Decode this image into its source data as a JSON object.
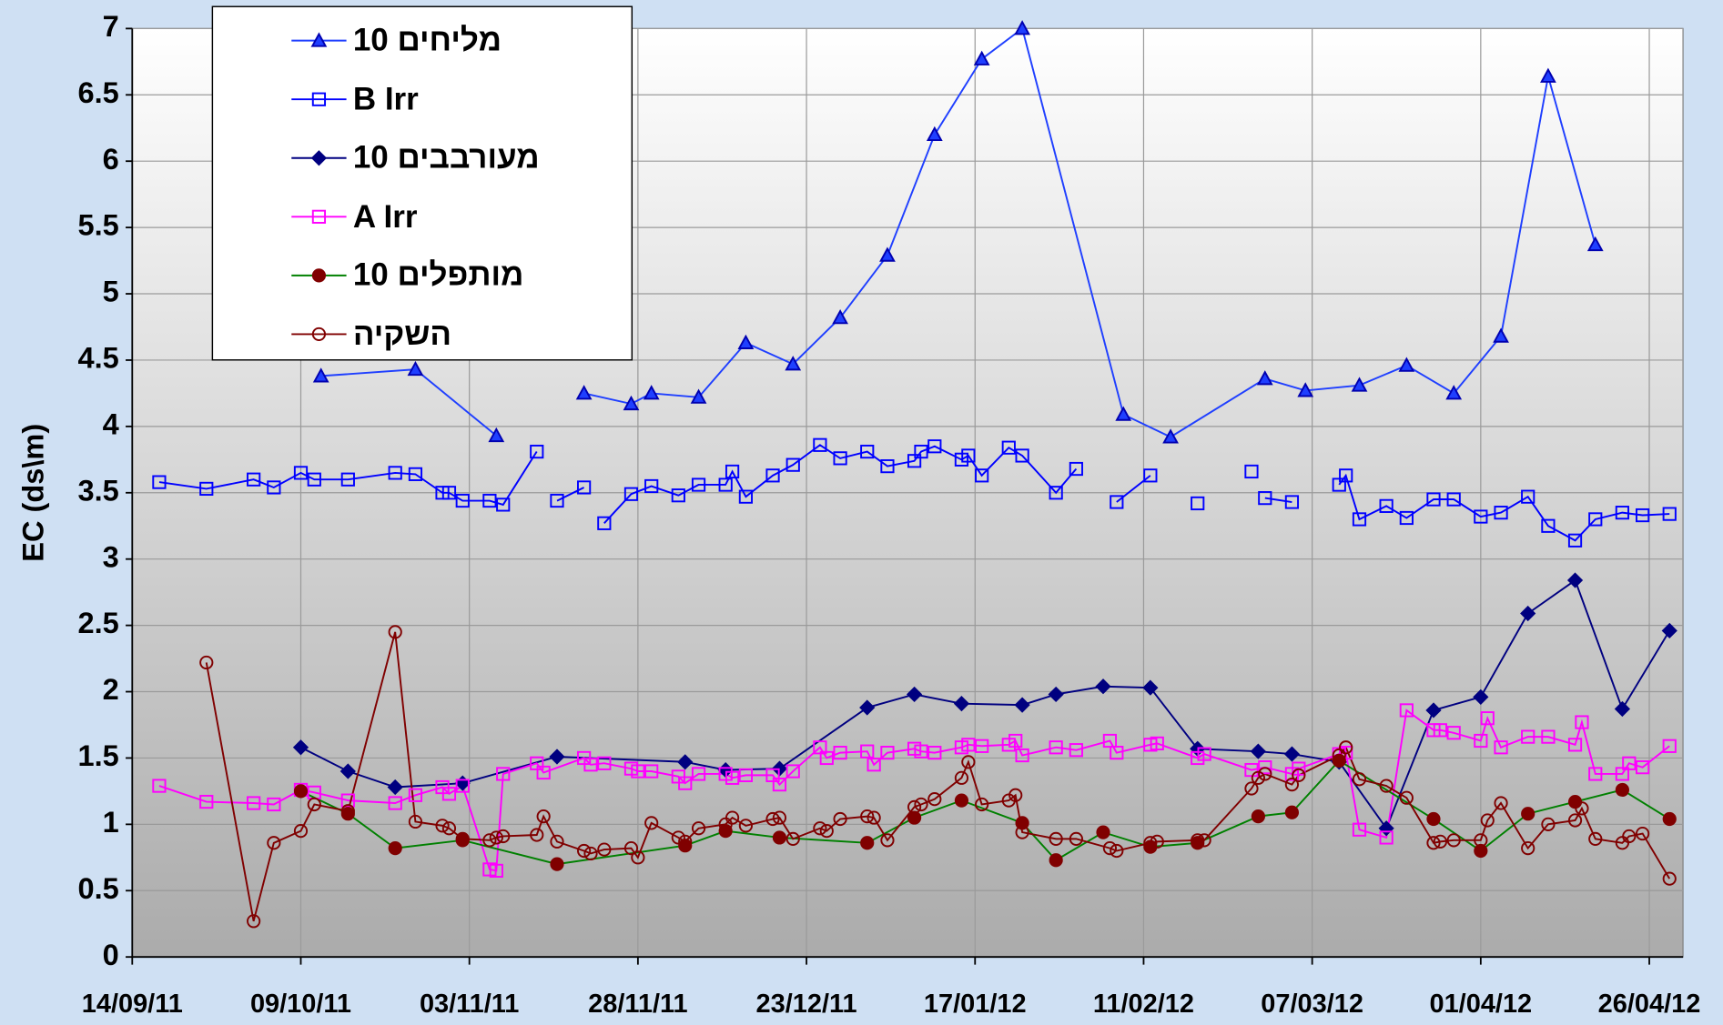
{
  "chart_data": {
    "type": "line",
    "ylabel": "EC  (ds\\m)",
    "xlim": [
      "14/09/11",
      "01/05/12"
    ],
    "xticks": [
      "14/09/11",
      "09/10/11",
      "03/11/11",
      "28/11/11",
      "23/12/11",
      "17/01/12",
      "11/02/12",
      "07/03/12",
      "01/04/12",
      "26/04/12"
    ],
    "ylim": [
      0,
      7
    ],
    "yticks": [
      0,
      0.5,
      1,
      1.5,
      2,
      2.5,
      3,
      3.5,
      4,
      4.5,
      5,
      5.5,
      6,
      6.5,
      7
    ],
    "grid": true,
    "legend": "upper left",
    "series": [
      {
        "name": "מליחים 10",
        "color": "#1f3fff",
        "marker": "triangle",
        "filled": true,
        "x": [
          "12/10/11",
          "26/10/11",
          "07/11/11",
          null,
          "20/11/11",
          "27/11/11",
          "30/11/11",
          "07/12/11",
          "14/12/11",
          "21/12/11",
          "28/12/11",
          "04/01/12",
          "11/01/12",
          "18/01/12",
          "24/01/12",
          "08/02/12",
          "15/02/12",
          "29/02/12",
          "06/03/12",
          "14/03/12",
          "21/03/12",
          "28/03/12",
          "04/04/12",
          "11/04/12",
          "18/04/12"
        ],
        "values": [
          4.38,
          4.43,
          3.93,
          null,
          4.25,
          4.17,
          4.25,
          4.22,
          4.63,
          4.47,
          4.82,
          5.29,
          6.2,
          6.77,
          7.0,
          4.09,
          3.92,
          4.36,
          4.27,
          4.31,
          4.46,
          4.25,
          4.68,
          6.64,
          5.37
        ]
      },
      {
        "name": "B Irr",
        "color": "#0000ff",
        "marker": "square",
        "filled": false,
        "x": [
          "18/09/11",
          "25/09/11",
          "02/10/11",
          "05/10/11",
          "09/10/11",
          "11/10/11",
          "16/10/11",
          "23/10/11",
          "26/10/11",
          "30/10/11",
          "31/10/11",
          "02/11/11",
          "06/11/11",
          "08/11/11",
          "13/11/11",
          null,
          "16/11/11",
          "20/11/11",
          null,
          "23/11/11",
          "27/11/11",
          "30/11/11",
          "04/12/11",
          "07/12/11",
          "11/12/11",
          "12/12/11",
          "14/12/11",
          "18/12/11",
          "21/12/11",
          "25/12/11",
          "28/12/11",
          "01/01/12",
          "04/01/12",
          "08/01/12",
          "09/01/12",
          "11/01/12",
          "15/01/12",
          "16/01/12",
          "18/01/12",
          "22/01/12",
          "24/01/12",
          "29/01/12",
          "01/02/12",
          null,
          "07/02/12",
          "12/02/12",
          null,
          "19/02/12",
          null,
          "27/02/12",
          null,
          "29/02/12",
          "04/03/12",
          null,
          "11/03/12",
          "12/03/12",
          "14/03/12",
          "18/03/12",
          "21/03/12",
          "25/03/12",
          "28/03/12",
          "01/04/12",
          "04/04/12",
          "08/04/12",
          "11/04/12",
          "15/04/12",
          "18/04/12",
          "22/04/12",
          "25/04/12",
          "29/04/12"
        ],
        "values": [
          3.58,
          3.53,
          3.6,
          3.54,
          3.65,
          3.6,
          3.6,
          3.65,
          3.64,
          3.5,
          3.5,
          3.44,
          3.44,
          3.41,
          3.81,
          null,
          3.44,
          3.54,
          null,
          3.27,
          3.49,
          3.55,
          3.48,
          3.56,
          3.56,
          3.66,
          3.47,
          3.63,
          3.71,
          3.86,
          3.76,
          3.81,
          3.7,
          3.74,
          3.81,
          3.85,
          3.75,
          3.78,
          3.63,
          3.84,
          3.78,
          3.5,
          3.68,
          null,
          3.43,
          3.63,
          null,
          3.42,
          null,
          3.66,
          null,
          3.46,
          3.43,
          null,
          3.56,
          3.63,
          3.3,
          3.4,
          3.31,
          3.45,
          3.45,
          3.32,
          3.35,
          3.47,
          3.25,
          3.14,
          3.3,
          3.35,
          3.33,
          3.34
        ]
      },
      {
        "name": "מעורבבים 10",
        "color": "#000080",
        "marker": "diamond",
        "filled": true,
        "x": [
          "09/10/11",
          "16/10/11",
          "23/10/11",
          "02/11/11",
          "16/11/11",
          "05/12/11",
          "11/12/11",
          "19/12/11",
          "01/01/12",
          "08/01/12",
          "15/01/12",
          "24/01/12",
          "29/01/12",
          "05/02/12",
          "12/02/12",
          "19/02/12",
          "28/02/12",
          "04/03/12",
          "11/03/12",
          "18/03/12",
          "25/03/12",
          "01/04/12",
          "08/04/12",
          "15/04/12",
          "22/04/12",
          "29/04/12"
        ],
        "values": [
          1.58,
          1.4,
          1.28,
          1.31,
          1.51,
          1.47,
          1.41,
          1.42,
          1.88,
          1.98,
          1.91,
          1.9,
          1.98,
          2.04,
          2.03,
          1.57,
          1.55,
          1.53,
          1.47,
          0.97,
          1.86,
          1.96,
          2.59,
          2.84,
          1.87,
          2.46
        ]
      },
      {
        "name": "A Irr",
        "color": "#ff00ff",
        "marker": "square",
        "filled": false,
        "x": [
          "18/09/11",
          "25/09/11",
          "02/10/11",
          "05/10/11",
          "09/10/11",
          "11/10/11",
          "16/10/11",
          "23/10/11",
          "26/10/11",
          "30/10/11",
          "31/10/11",
          "02/11/11",
          "06/11/11",
          "07/11/11",
          "08/11/11",
          "13/11/11",
          "14/11/11",
          "20/11/11",
          "21/11/11",
          "23/11/11",
          "27/11/11",
          "28/11/11",
          "30/11/11",
          "04/12/11",
          "05/12/11",
          "07/12/11",
          "11/12/11",
          "12/12/11",
          "14/12/11",
          "18/12/11",
          "19/12/11",
          "21/12/11",
          "25/12/11",
          "26/12/11",
          "28/12/11",
          "01/01/12",
          "02/01/12",
          "04/01/12",
          "08/01/12",
          "09/01/12",
          "11/01/12",
          "15/01/12",
          "16/01/12",
          "18/01/12",
          "22/01/12",
          "23/01/12",
          "24/01/12",
          "29/01/12",
          "01/02/12",
          "06/02/12",
          "07/02/12",
          "12/02/12",
          "13/02/12",
          "19/02/12",
          "20/02/12",
          "27/02/12",
          "29/02/12",
          "04/03/12",
          "05/03/12",
          "11/03/12",
          "12/03/12",
          "14/03/12",
          "18/03/12",
          "21/03/12",
          "25/03/12",
          "26/03/12",
          "28/03/12",
          "01/04/12",
          "02/04/12",
          "04/04/12",
          "08/04/12",
          "11/04/12",
          "15/04/12",
          "16/04/12",
          "18/04/12",
          "22/04/12",
          "23/04/12",
          "25/04/12",
          "29/04/12"
        ],
        "values": [
          1.29,
          1.17,
          1.16,
          1.15,
          1.26,
          1.24,
          1.18,
          1.16,
          1.22,
          1.28,
          1.23,
          1.29,
          0.66,
          0.65,
          1.38,
          1.46,
          1.39,
          1.5,
          1.45,
          1.46,
          1.42,
          1.4,
          1.4,
          1.36,
          1.31,
          1.38,
          1.38,
          1.35,
          1.37,
          1.37,
          1.3,
          1.4,
          1.58,
          1.5,
          1.54,
          1.55,
          1.45,
          1.54,
          1.57,
          1.55,
          1.54,
          1.58,
          1.6,
          1.59,
          1.6,
          1.63,
          1.52,
          1.58,
          1.56,
          1.63,
          1.54,
          1.6,
          1.61,
          1.5,
          1.53,
          1.41,
          1.43,
          1.38,
          1.42,
          1.53,
          1.54,
          0.96,
          0.9,
          1.86,
          1.71,
          1.71,
          1.69,
          1.63,
          1.8,
          1.58,
          1.66,
          1.66,
          1.6,
          1.77,
          1.38,
          1.38,
          1.46,
          1.43,
          1.59
        ]
      },
      {
        "name": "מותפלים 10",
        "color": "#800000",
        "line_color": "#008000",
        "marker": "circle",
        "filled": true,
        "x": [
          "09/10/11",
          "16/10/11",
          "23/10/11",
          "02/11/11",
          "16/11/11",
          "05/12/11",
          "11/12/11",
          "19/12/11",
          "01/01/12",
          "08/01/12",
          "15/01/12",
          "24/01/12",
          "29/01/12",
          "05/02/12",
          "12/02/12",
          "19/02/12",
          "28/02/12",
          "04/03/12",
          "11/03/12",
          "25/03/12",
          "01/04/12",
          "08/04/12",
          "15/04/12",
          "22/04/12",
          "29/04/12"
        ],
        "values": [
          1.25,
          1.08,
          0.82,
          0.88,
          0.7,
          0.84,
          0.95,
          0.9,
          0.86,
          1.05,
          1.18,
          1.01,
          0.73,
          0.94,
          0.83,
          0.86,
          1.06,
          1.09,
          1.48,
          1.04,
          0.8,
          1.08,
          1.17,
          1.26,
          1.04
        ]
      },
      {
        "name": "השקיה",
        "color": "#800000",
        "marker": "circle",
        "filled": false,
        "x": [
          "25/09/11",
          "02/10/11",
          "05/10/11",
          "09/10/11",
          "11/10/11",
          "16/10/11",
          "23/10/11",
          "26/10/11",
          "30/10/11",
          "31/10/11",
          "02/11/11",
          "06/11/11",
          "07/11/11",
          "08/11/11",
          "13/11/11",
          "14/11/11",
          "16/11/11",
          "20/11/11",
          "21/11/11",
          "23/11/11",
          "27/11/11",
          "28/11/11",
          "30/11/11",
          "04/12/11",
          "05/12/11",
          "07/12/11",
          "11/12/11",
          "12/12/11",
          "14/12/11",
          "18/12/11",
          "19/12/11",
          "21/12/11",
          "25/12/11",
          "26/12/11",
          "28/12/11",
          "01/01/12",
          "02/01/12",
          "04/01/12",
          "08/01/12",
          "09/01/12",
          "11/01/12",
          "15/01/12",
          "16/01/12",
          "18/01/12",
          "22/01/12",
          "23/01/12",
          "24/01/12",
          "29/01/12",
          "01/02/12",
          "06/02/12",
          "07/02/12",
          "12/02/12",
          "13/02/12",
          "19/02/12",
          "20/02/12",
          "27/02/12",
          "28/02/12",
          "29/02/12",
          "04/03/12",
          "05/03/12",
          "11/03/12",
          "12/03/12",
          "14/03/12",
          "18/03/12",
          "21/03/12",
          "25/03/12",
          "26/03/12",
          "28/03/12",
          "01/04/12",
          "02/04/12",
          "04/04/12",
          "08/04/12",
          "11/04/12",
          "15/04/12",
          "16/04/12",
          "18/04/12",
          "22/04/12",
          "23/04/12",
          "25/04/12",
          "29/04/12"
        ],
        "values": [
          2.22,
          0.27,
          0.86,
          0.95,
          1.15,
          1.1,
          2.45,
          1.02,
          0.99,
          0.97,
          0.89,
          0.88,
          0.9,
          0.91,
          0.92,
          1.06,
          0.87,
          0.8,
          0.78,
          0.81,
          0.82,
          0.75,
          1.01,
          0.9,
          0.87,
          0.97,
          1.0,
          1.05,
          0.99,
          1.04,
          1.05,
          0.89,
          0.97,
          0.95,
          1.04,
          1.06,
          1.05,
          0.88,
          1.13,
          1.15,
          1.19,
          1.35,
          1.47,
          1.15,
          1.18,
          1.22,
          0.94,
          0.89,
          0.89,
          0.82,
          0.8,
          0.86,
          0.87,
          0.88,
          0.88,
          1.27,
          1.35,
          1.38,
          1.3,
          1.37,
          1.52,
          1.58,
          1.34,
          1.29,
          1.2,
          0.86,
          0.87,
          0.88,
          0.88,
          1.03,
          1.16,
          0.82,
          1.0,
          1.03,
          1.12,
          0.89,
          0.86,
          0.91,
          0.93,
          0.59
        ]
      }
    ]
  }
}
